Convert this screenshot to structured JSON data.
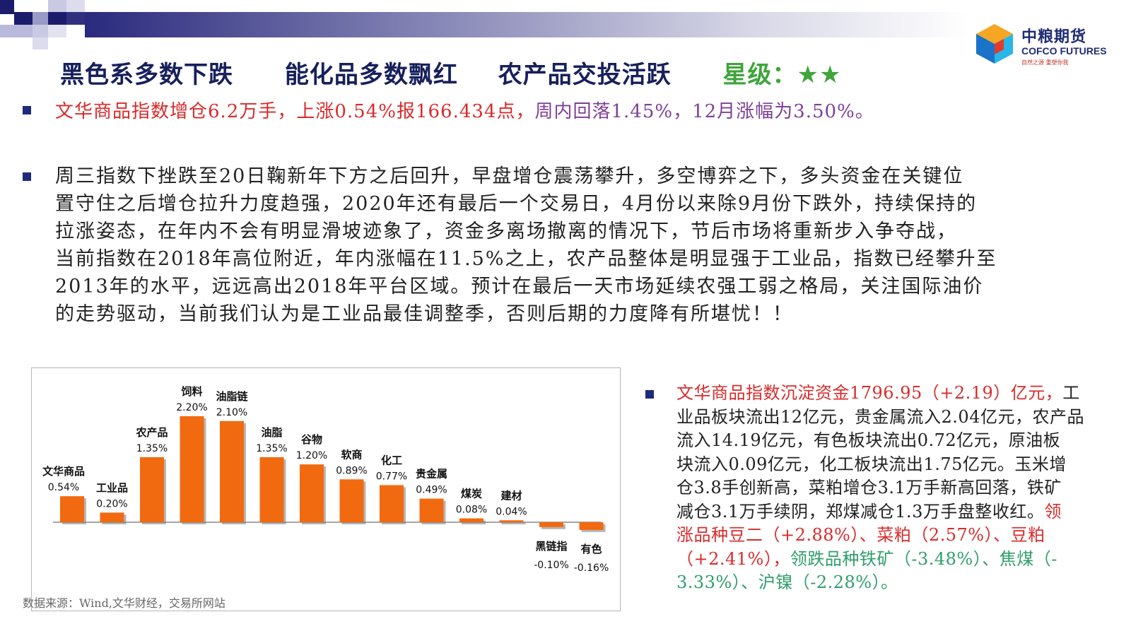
{
  "header": {
    "title_1": "黑色系多数下跌",
    "title_2": "能化品多数飘红",
    "title_3": "农产品交投活跃",
    "rating": "星级：★★",
    "accent_color": "#17205c",
    "rating_color": "#3ea53a"
  },
  "logo": {
    "name_cn": "中粮期货",
    "name_en": "COFCO FUTURES",
    "slogan": "自然之源 重塑你我"
  },
  "summary": {
    "part_red": "文华商品指数增仓6.2万手，上涨0.54%报166.434点，",
    "part_purple": "周内回落1.45%，12月涨幅为3.50%。"
  },
  "analysis": {
    "lines": [
      "周三指数下挫跌至20日鞠新年下方之后回升，早盘增仓震荡攀升，多空博弈之下，多头资金在关键位",
      "置守住之后增仓拉升力度趋强，2020年还有最后一个交易日，4月份以来除9月份下跌外，持续保持的",
      "拉涨姿态，在年内不会有明显滑坡迹象了，资金多离场撤离的情况下，节后市场将重新步入争夺战，",
      "当前指数在2018年高位附近，年内涨幅在11.5%之上，农产品整体是明显强于工业品，指数已经攀升至",
      "2013年的水平，远远高出2018年平台区域。预计在最后一天市场延续农强工弱之格局，关注国际油价",
      "的走势驱动，当前我们认为是工业品最佳调整季，否则后期的力度降有所堪忧！！"
    ]
  },
  "chart_data": {
    "type": "bar",
    "categories": [
      "文华商品",
      "工业品",
      "农产品",
      "饲料",
      "油脂链",
      "油脂",
      "谷物",
      "软商",
      "化工",
      "贵金属",
      "煤炭",
      "建材",
      "黑链指",
      "有色"
    ],
    "values": [
      0.54,
      0.2,
      1.35,
      2.2,
      2.1,
      1.35,
      1.2,
      0.89,
      0.77,
      0.49,
      0.08,
      0.04,
      -0.1,
      -0.16
    ],
    "value_labels": [
      "0.54%",
      "0.20%",
      "1.35%",
      "2.20%",
      "2.10%",
      "1.35%",
      "1.20%",
      "0.89%",
      "0.77%",
      "0.49%",
      "0.08%",
      "0.04%",
      "-0.10%",
      "-0.16%"
    ],
    "bar_color": "#f26a10",
    "title": "",
    "xlabel": "",
    "ylabel": "",
    "ylim": [
      -0.3,
      2.4
    ],
    "grid": false,
    "source": "数据来源：Wind,文华财经，交易所网站"
  },
  "funds": {
    "lines": [
      [
        {
          "t": "文华商品指数沉淀资金1796.95（+2.19）亿元，",
          "c": "red"
        },
        {
          "t": "工",
          "c": "dark"
        }
      ],
      [
        {
          "t": "业品板块流出12亿元，贵金属流入2.04亿元，农产品",
          "c": "dark"
        }
      ],
      [
        {
          "t": "流入14.19亿元，有色板块流出0.72亿元，原油板",
          "c": "dark"
        }
      ],
      [
        {
          "t": "块流入0.09亿元，化工板块流出1.75亿元。玉米增",
          "c": "dark"
        }
      ],
      [
        {
          "t": "仓3.8手创新高，菜粕增仓3.1万手新高回落，铁矿",
          "c": "dark"
        }
      ],
      [
        {
          "t": "减仓3.1万手续阴，郑煤减仓1.3万手盘整收红。",
          "c": "dark"
        },
        {
          "t": "领",
          "c": "red"
        }
      ],
      [
        {
          "t": "涨品种豆二（+2.88%）、菜粕（2.57%）、豆粕",
          "c": "red"
        }
      ],
      [
        {
          "t": "（+2.41%），",
          "c": "red"
        },
        {
          "t": "领跌品种铁矿（-3.48%）、焦煤（-",
          "c": "green"
        }
      ],
      [
        {
          "t": "3.33%）、沪镍（-2.28%）。",
          "c": "green"
        }
      ]
    ]
  }
}
